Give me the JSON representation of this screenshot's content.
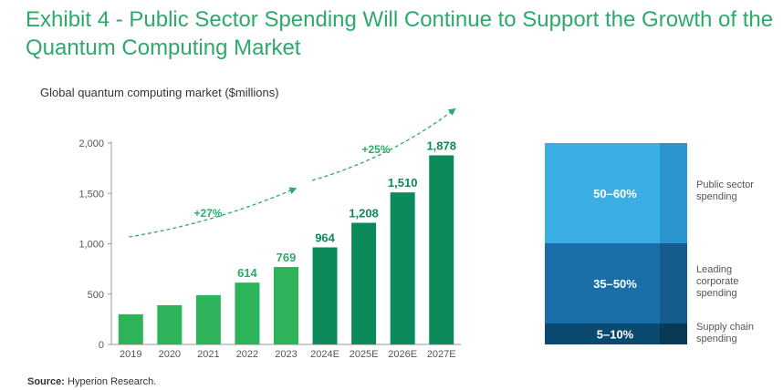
{
  "title": "Exhibit 4 - Public Sector Spending Will Continue to Support the Growth of the Quantum Computing Market",
  "source": {
    "label": "Source:",
    "text": " Hyperion Research."
  },
  "colors": {
    "title": "#2ea96b",
    "bar_light": "#2db35a",
    "bar_dark": "#0d8a5a",
    "label_light": "#2ea96b",
    "label_dark": "#0d8a5a",
    "stack_public": "#3aaee5",
    "stack_public_shade": "#2b95cf",
    "stack_corporate": "#1a6fa8",
    "stack_corporate_shade": "#145c8d",
    "stack_supply": "#0b4a70",
    "stack_supply_shade": "#083a58"
  },
  "chart_data": [
    {
      "type": "bar",
      "title": "Global quantum computing market ($millions)",
      "categories": [
        "2019",
        "2020",
        "2021",
        "2022",
        "2023",
        "2024E",
        "2025E",
        "2026E",
        "2027E"
      ],
      "values": [
        300,
        390,
        490,
        614,
        769,
        964,
        1208,
        1510,
        1878
      ],
      "data_labels": [
        "",
        "",
        "",
        "614",
        "769",
        "964",
        "1,208",
        "1,510",
        "1,878"
      ],
      "ylim": [
        0,
        2000
      ],
      "yticks": [
        0,
        500,
        1000,
        1500,
        2000
      ],
      "ytick_labels": [
        "0",
        "500",
        "1,000",
        "1,500",
        "2,000"
      ],
      "grid": false,
      "annotations": [
        {
          "text": "+27%",
          "period": "2019-2023"
        },
        {
          "text": "+25%",
          "period": "2023-2027E"
        }
      ]
    },
    {
      "type": "bar",
      "stacked": true,
      "segments": [
        {
          "label": "Public sector spending",
          "range": "50–60%",
          "low": 50,
          "high": 60
        },
        {
          "label": "Leading corporate spending",
          "range": "35–50%",
          "low": 35,
          "high": 50
        },
        {
          "label": "Supply chain spending",
          "range": "5–10%",
          "low": 5,
          "high": 10
        }
      ]
    }
  ]
}
